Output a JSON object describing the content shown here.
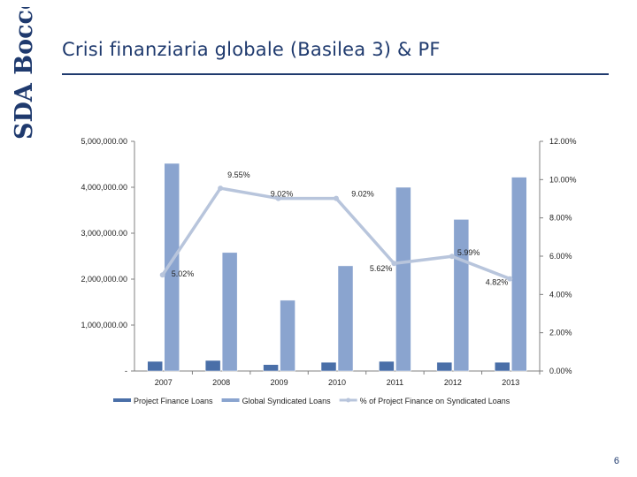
{
  "logo": {
    "text": "SDA Bocconi",
    "color": "#1f3a6e"
  },
  "slide": {
    "title": "Crisi finanziaria globale (Basilea 3) & PF",
    "page_number": "6",
    "title_color": "#1f3a6e"
  },
  "chart_data": {
    "type": "bar",
    "categories": [
      "2007",
      "2008",
      "2009",
      "2010",
      "2011",
      "2012",
      "2013"
    ],
    "series": [
      {
        "name": "Project Finance Loans",
        "type": "bar",
        "axis": "left",
        "color": "#4a6fa8",
        "values": [
          210000,
          230000,
          140000,
          190000,
          210000,
          190000,
          190000
        ]
      },
      {
        "name": "Global Syndicated Loans",
        "type": "bar",
        "axis": "left",
        "color": "#8aa4cf",
        "values": [
          4520000,
          2580000,
          1540000,
          2290000,
          4000000,
          3300000,
          4220000
        ]
      },
      {
        "name": "% of Project Finance on Syndicated Loans",
        "type": "line",
        "axis": "right",
        "color": "#b8c5dc",
        "values": [
          5.02,
          9.55,
          9.02,
          9.02,
          5.62,
          5.99,
          4.82
        ],
        "labels": [
          "5.02%",
          "9.55%",
          "9.02%",
          "9.02%",
          "5.62%",
          "5.99%",
          "4.82%"
        ]
      }
    ],
    "y_left": {
      "ylim": [
        0,
        5000000
      ],
      "ticks": [
        "-",
        "1,000,000.00",
        "2,000,000.00",
        "3,000,000.00",
        "4,000,000.00",
        "5,000,000.00"
      ]
    },
    "y_right": {
      "ylim": [
        0,
        12
      ],
      "ticks": [
        "0.00%",
        "2.00%",
        "4.00%",
        "6.00%",
        "8.00%",
        "10.00%",
        "12.00%"
      ]
    },
    "legend": "bottom",
    "grid": false
  }
}
